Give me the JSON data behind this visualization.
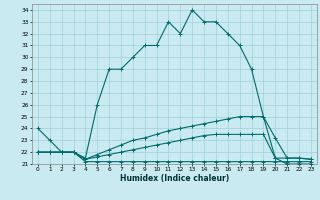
{
  "xlabel": "Humidex (Indice chaleur)",
  "ylabel": "",
  "background_color": "#c8eaf0",
  "grid_color": "#a0d0d8",
  "line_color": "#006b6b",
  "xlim": [
    -0.5,
    23.5
  ],
  "ylim": [
    21,
    34.5
  ],
  "xticks": [
    0,
    1,
    2,
    3,
    4,
    5,
    6,
    7,
    8,
    9,
    10,
    11,
    12,
    13,
    14,
    15,
    16,
    17,
    18,
    19,
    20,
    21,
    22,
    23
  ],
  "yticks": [
    21,
    22,
    23,
    24,
    25,
    26,
    27,
    28,
    29,
    30,
    31,
    32,
    33,
    34
  ],
  "line1": [
    24,
    23,
    22,
    22,
    21.5,
    26,
    29,
    29,
    30,
    31,
    31,
    33,
    32,
    34,
    33,
    33,
    32,
    31,
    29,
    25,
    21.5,
    21,
    21,
    21
  ],
  "line2": [
    22,
    22,
    22,
    22,
    21.2,
    21.2,
    21.2,
    21.2,
    21.2,
    21.2,
    21.2,
    21.2,
    21.2,
    21.2,
    21.2,
    21.2,
    21.2,
    21.2,
    21.2,
    21.2,
    21.2,
    21.2,
    21.2,
    21.2
  ],
  "line3": [
    22,
    22,
    22,
    22,
    21.4,
    21.6,
    21.8,
    22,
    22.2,
    22.4,
    22.6,
    22.8,
    23,
    23.2,
    23.4,
    23.5,
    23.5,
    23.5,
    23.5,
    23.5,
    21.5,
    21.5,
    21.5,
    21.4
  ],
  "line4": [
    22,
    22,
    22,
    22,
    21.4,
    21.8,
    22.2,
    22.6,
    23.0,
    23.2,
    23.5,
    23.8,
    24.0,
    24.2,
    24.4,
    24.6,
    24.8,
    25.0,
    25.0,
    25.0,
    23.2,
    21.5,
    21.5,
    21.4
  ]
}
